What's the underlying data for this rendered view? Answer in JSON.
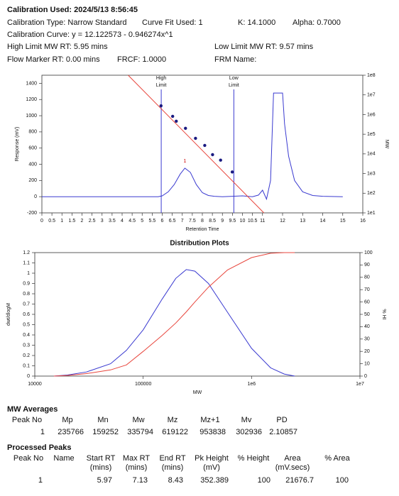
{
  "header": {
    "calibration_used": "Calibration Used: 2024/5/13 8:56:45",
    "calibration_type": "Calibration Type: Narrow Standard",
    "curve_fit": "Curve Fit Used: 1",
    "k": "K: 14.1000",
    "alpha": "Alpha: 0.7000",
    "calibration_curve": "Calibration Curve: y = 12.122573 - 0.946274x^1",
    "high_limit": "High Limit MW RT: 5.95 mins",
    "low_limit": "Low Limit MW RT: 9.57 mins",
    "flow_marker": "Flow Marker RT: 0.00 mins",
    "frcf": "FRCF: 1.0000",
    "frm_name": "FRM Name:"
  },
  "chart_data": [
    {
      "type": "line",
      "xlabel": "Retention Time",
      "ylabel": "Response (mV)",
      "y2label": "MW",
      "xlim": [
        0,
        16
      ],
      "xticks": [
        0,
        0.5,
        1,
        1.5,
        2,
        2.5,
        3,
        3.5,
        4,
        4.5,
        5,
        5.5,
        6,
        6.5,
        7,
        7.5,
        8,
        8.5,
        9,
        9.5,
        10,
        10.5,
        11,
        12,
        13,
        14,
        15,
        16
      ],
      "ylim": [
        -200,
        1500
      ],
      "yticks": [
        -200,
        0,
        200,
        400,
        600,
        800,
        1000,
        1200,
        1400
      ],
      "y2lim": [
        10,
        100000000
      ],
      "y2_log": true,
      "y2ticks": [
        {
          "value": 10,
          "label": "1e1"
        },
        {
          "value": 100,
          "label": "1e2"
        },
        {
          "value": 1000,
          "label": "1e3"
        },
        {
          "value": 10000,
          "label": "1e4"
        },
        {
          "value": 100000,
          "label": "1e5"
        },
        {
          "value": 1000000,
          "label": "1e6"
        },
        {
          "value": 10000000,
          "label": "1e7"
        },
        {
          "value": 100000000,
          "label": "1e8"
        }
      ],
      "series": [
        {
          "type": "line",
          "color": "#3a3ad0",
          "x": [
            0,
            5.8,
            6.0,
            6.3,
            6.6,
            6.9,
            7.13,
            7.4,
            7.7,
            8.0,
            8.3,
            8.6,
            9.0,
            9.5,
            10.0,
            10.5,
            10.8,
            11.0,
            11.2,
            11.4,
            11.55,
            11.65,
            12.0,
            12.1,
            12.3,
            12.6,
            13.0,
            13.5,
            14.0,
            15.0
          ],
          "values": [
            0,
            0,
            10,
            60,
            150,
            280,
            352,
            300,
            150,
            50,
            15,
            5,
            0,
            5,
            10,
            0,
            20,
            80,
            -30,
            200,
            1280,
            1280,
            1280,
            900,
            500,
            200,
            60,
            15,
            5,
            0
          ]
        },
        {
          "type": "line",
          "color": "#e8453c",
          "axis": "y2",
          "x": [
            4.3,
            11.07
          ],
          "values": [
            100000000,
            10
          ]
        },
        {
          "type": "scatter",
          "color": "#1a1a80",
          "axis": "y2",
          "x": [
            5.94,
            6.52,
            6.7,
            7.16,
            7.66,
            8.12,
            8.51,
            8.91,
            9.49
          ],
          "values": [
            2800000,
            810000,
            460000,
            200000,
            62000,
            27000,
            9100,
            4800,
            1200
          ]
        }
      ],
      "limits": [
        {
          "x": 5.95,
          "label": [
            "High",
            "Limit"
          ]
        },
        {
          "x": 9.57,
          "label": [
            "Low",
            "Limit"
          ]
        }
      ],
      "peak_labels": [
        {
          "x": 7.13,
          "y": 352,
          "text": "1"
        }
      ]
    },
    {
      "type": "line",
      "title": "Distribution Plots",
      "xlabel": "MW",
      "ylabel": "dwt/dlogM",
      "y2label": "% HI",
      "xlim": [
        10000,
        10000000
      ],
      "x_log": true,
      "xticks": [
        10000,
        100000,
        {
          "value": 1000000,
          "label": "1e6"
        },
        {
          "value": 10000000,
          "label": "1e7"
        }
      ],
      "ylim": [
        0,
        1.2
      ],
      "yticks": [
        0,
        0.1,
        0.2,
        0.3,
        0.4,
        0.5,
        0.6,
        0.7,
        0.8,
        0.9,
        1,
        1.1,
        1.2
      ],
      "y2lim": [
        0,
        100
      ],
      "y2ticks": [
        0,
        10,
        20,
        30,
        40,
        50,
        60,
        70,
        80,
        90,
        100
      ],
      "x": [
        15000,
        20000,
        30000,
        50000,
        70000,
        100000,
        150000,
        200000,
        250000,
        300000,
        400000,
        600000,
        1000000,
        1500000,
        2000000,
        2500000
      ],
      "series": [
        {
          "type": "line",
          "color": "#3a3ad0",
          "values": [
            0,
            0.01,
            0.04,
            0.12,
            0.25,
            0.45,
            0.75,
            0.95,
            1.035,
            1.02,
            0.9,
            0.62,
            0.27,
            0.08,
            0.02,
            0
          ]
        },
        {
          "type": "line",
          "color": "#e8453c",
          "axis": "y2",
          "values": [
            0,
            0.5,
            2,
            5,
            9,
            20,
            33,
            43,
            52,
            60,
            72,
            86,
            96,
            99.5,
            100,
            100
          ]
        }
      ]
    }
  ],
  "mw_averages": {
    "title": "MW Averages",
    "columns": [
      "Peak No",
      "Mp",
      "Mn",
      "Mw",
      "Mz",
      "Mz+1",
      "Mv",
      "PD"
    ],
    "rows": [
      [
        1,
        235766,
        159252,
        335794,
        619122,
        953838,
        302936,
        2.10857
      ]
    ]
  },
  "processed_peaks": {
    "title": "Processed Peaks",
    "columns": [
      [
        "Peak No"
      ],
      [
        "Name"
      ],
      [
        "Start RT",
        "(mins)"
      ],
      [
        "Max RT",
        "(mins)"
      ],
      [
        "End RT",
        "(mins)"
      ],
      [
        "Pk Height",
        "(mV)"
      ],
      [
        "% Height"
      ],
      [
        "Area",
        "(mV.secs)"
      ],
      [
        "% Area"
      ]
    ],
    "rows": [
      [
        1,
        null,
        5.97,
        7.13,
        8.43,
        352.389,
        100,
        21676.7,
        100
      ]
    ]
  }
}
